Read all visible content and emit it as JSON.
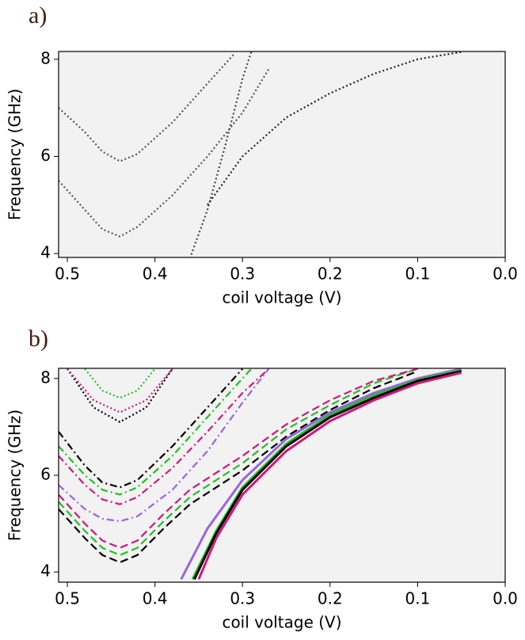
{
  "chart_data": [
    {
      "type": "line",
      "panel_label": "a)",
      "xlabel": "coil voltage (V)",
      "ylabel": "Frequency (GHz)",
      "xlim": [
        0.51,
        0
      ],
      "ylim": [
        3.92,
        8.16
      ],
      "xticks": [
        0.5,
        0.4,
        0.3,
        0.2,
        0.1,
        {
          "value": 0,
          "label": "0.0"
        }
      ],
      "yticks": [
        4,
        6,
        8
      ],
      "series": [
        {
          "color": "#555555",
          "dash": "dotted",
          "x": [
            0.51,
            0.48,
            0.46,
            0.44,
            0.42,
            0.38,
            0.34,
            0.31
          ],
          "values": [
            7.0,
            6.5,
            6.1,
            5.9,
            6.05,
            6.7,
            7.5,
            8.1
          ]
        },
        {
          "color": "#555555",
          "dash": "dotted",
          "x": [
            0.51,
            0.48,
            0.46,
            0.44,
            0.42,
            0.38,
            0.34,
            0.3,
            0.27
          ],
          "values": [
            5.5,
            4.9,
            4.5,
            4.35,
            4.55,
            5.2,
            6.0,
            6.9,
            7.8
          ]
        },
        {
          "color": "#444444",
          "dash": "dotted",
          "x": [
            0.36,
            0.34,
            0.32,
            0.3,
            0.29
          ],
          "values": [
            3.9,
            4.9,
            6.2,
            7.6,
            8.15
          ]
        },
        {
          "color": "#222222",
          "dash": "dotted",
          "x": [
            0.34,
            0.3,
            0.25,
            0.2,
            0.15,
            0.1,
            0.05
          ],
          "values": [
            5.0,
            6.0,
            6.8,
            7.3,
            7.7,
            8.0,
            8.15
          ]
        }
      ]
    },
    {
      "type": "line",
      "panel_label": "b)",
      "xlabel": "coil voltage (V)",
      "ylabel": "Frequency (GHz)",
      "xlim": [
        0.51,
        0
      ],
      "ylim": [
        3.79,
        8.21
      ],
      "xticks": [
        0.5,
        0.4,
        0.3,
        0.2,
        0.1,
        {
          "value": 0,
          "label": "0.0"
        }
      ],
      "yticks": [
        4,
        6,
        8
      ],
      "series": [
        {
          "color": "#000000",
          "dash": "dotted",
          "x": [
            0.5,
            0.47,
            0.44,
            0.41,
            0.38
          ],
          "values": [
            8.2,
            7.4,
            7.1,
            7.4,
            8.2
          ]
        },
        {
          "color": "#22c022",
          "dash": "dotted",
          "x": [
            0.48,
            0.46,
            0.44,
            0.42,
            0.4
          ],
          "values": [
            8.2,
            7.75,
            7.6,
            7.75,
            8.2
          ]
        },
        {
          "color": "#d0187a",
          "dash": "dotted",
          "x": [
            0.5,
            0.47,
            0.44,
            0.41,
            0.38
          ],
          "values": [
            8.2,
            7.55,
            7.3,
            7.55,
            8.2
          ]
        },
        {
          "color": "#000000",
          "dash": "dashdot",
          "x": [
            0.51,
            0.48,
            0.46,
            0.44,
            0.42,
            0.38,
            0.34,
            0.3
          ],
          "values": [
            6.9,
            6.2,
            5.85,
            5.75,
            5.9,
            6.6,
            7.4,
            8.2
          ]
        },
        {
          "color": "#22c022",
          "dash": "dashdot",
          "x": [
            0.51,
            0.48,
            0.46,
            0.44,
            0.42,
            0.38,
            0.34,
            0.29
          ],
          "values": [
            6.6,
            6.0,
            5.7,
            5.6,
            5.75,
            6.4,
            7.2,
            8.2
          ]
        },
        {
          "color": "#d0187a",
          "dash": "dashdot",
          "x": [
            0.51,
            0.48,
            0.46,
            0.44,
            0.42,
            0.38,
            0.34,
            0.3,
            0.27
          ],
          "values": [
            6.4,
            5.8,
            5.5,
            5.4,
            5.55,
            6.15,
            6.9,
            7.7,
            8.2
          ]
        },
        {
          "color": "#9966dd",
          "dash": "dashdot",
          "x": [
            0.51,
            0.48,
            0.46,
            0.44,
            0.42,
            0.38,
            0.34,
            0.3,
            0.27
          ],
          "values": [
            5.8,
            5.3,
            5.1,
            5.05,
            5.15,
            5.7,
            6.5,
            7.5,
            8.2
          ]
        },
        {
          "color": "#000000",
          "dash": "dashed",
          "x": [
            0.51,
            0.48,
            0.46,
            0.44,
            0.42,
            0.39,
            0.36,
            0.33,
            0.3,
            0.25,
            0.2,
            0.15,
            0.1
          ],
          "values": [
            5.3,
            4.7,
            4.35,
            4.2,
            4.35,
            4.9,
            5.4,
            5.75,
            6.1,
            6.8,
            7.35,
            7.8,
            8.15
          ]
        },
        {
          "color": "#22c022",
          "dash": "dashed",
          "x": [
            0.51,
            0.48,
            0.46,
            0.44,
            0.42,
            0.39,
            0.36,
            0.33,
            0.3,
            0.25,
            0.2,
            0.15,
            0.1
          ],
          "values": [
            5.45,
            4.85,
            4.5,
            4.35,
            4.5,
            5.05,
            5.55,
            5.9,
            6.25,
            6.95,
            7.45,
            7.9,
            8.2
          ]
        },
        {
          "color": "#d0187a",
          "dash": "dashed",
          "x": [
            0.51,
            0.48,
            0.46,
            0.44,
            0.42,
            0.39,
            0.36,
            0.33,
            0.3,
            0.25,
            0.2,
            0.15,
            0.1
          ],
          "values": [
            5.6,
            5.0,
            4.65,
            4.5,
            4.65,
            5.2,
            5.7,
            6.05,
            6.4,
            7.05,
            7.55,
            7.95,
            8.2
          ]
        },
        {
          "color": "#9966dd",
          "dash": "solid",
          "x": [
            0.37,
            0.34,
            0.3,
            0.25,
            0.2,
            0.15,
            0.1,
            0.05
          ],
          "values": [
            3.85,
            4.9,
            5.9,
            6.75,
            7.3,
            7.7,
            8.0,
            8.2
          ]
        },
        {
          "color": "#22c022",
          "dash": "solid",
          "x": [
            0.357,
            0.33,
            0.3,
            0.25,
            0.2,
            0.15,
            0.1,
            0.05
          ],
          "values": [
            3.85,
            4.85,
            5.75,
            6.65,
            7.25,
            7.65,
            7.97,
            8.17
          ]
        },
        {
          "color": "#000000",
          "dash": "solid",
          "x": [
            0.355,
            0.33,
            0.3,
            0.25,
            0.2,
            0.15,
            0.1,
            0.05
          ],
          "values": [
            3.85,
            4.8,
            5.7,
            6.6,
            7.2,
            7.6,
            7.95,
            8.15
          ]
        },
        {
          "color": "#d0187a",
          "dash": "solid",
          "x": [
            0.35,
            0.33,
            0.3,
            0.25,
            0.2,
            0.15,
            0.1,
            0.05
          ],
          "values": [
            3.85,
            4.7,
            5.6,
            6.5,
            7.12,
            7.55,
            7.9,
            8.12
          ]
        }
      ]
    }
  ]
}
